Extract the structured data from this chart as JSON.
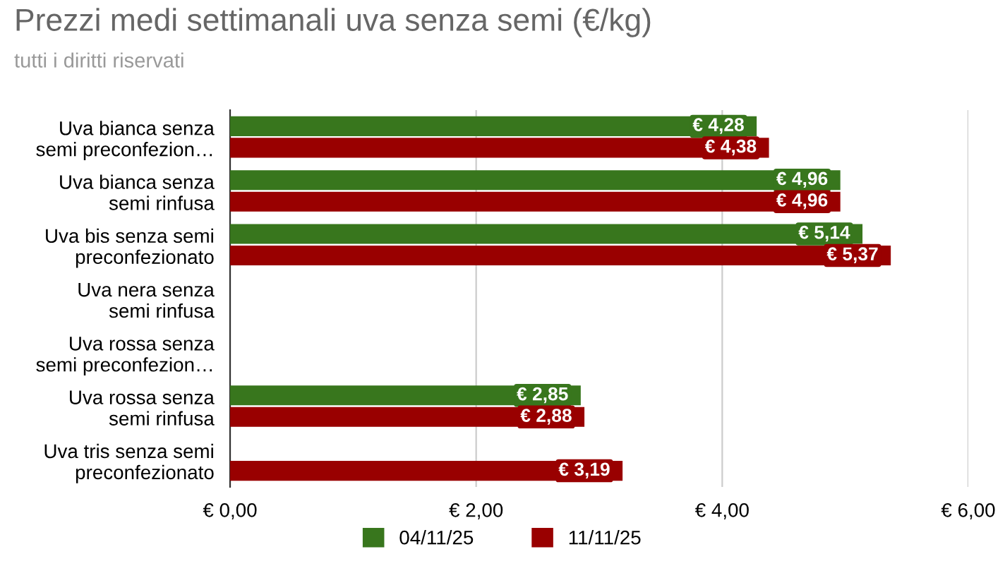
{
  "chart_data": {
    "type": "bar",
    "orientation": "horizontal",
    "title": "Prezzi medi settimanali uva senza semi (€/kg)",
    "annotations": [
      "tutti i diritti riservati"
    ],
    "categories": [
      "Uva bianca senza\nsemi preconfezion…",
      "Uva bianca senza\nsemi rinfusa",
      "Uva bis senza semi\npreconfezionato",
      "Uva nera senza\nsemi rinfusa",
      "Uva rossa senza\nsemi preconfezion…",
      "Uva rossa senza\nsemi rinfusa",
      "Uva tris senza semi\npreconfezionato"
    ],
    "series": [
      {
        "name": "04/11/25",
        "color": "#38761d",
        "values": [
          4.28,
          4.96,
          5.14,
          null,
          null,
          2.85,
          null
        ],
        "value_labels": [
          "€ 4,28",
          "€ 4,96",
          "€ 5,14",
          null,
          null,
          "€ 2,85",
          null
        ]
      },
      {
        "name": "11/11/25",
        "color": "#990000",
        "values": [
          4.38,
          4.96,
          5.37,
          null,
          null,
          2.88,
          3.19
        ],
        "value_labels": [
          "€ 4,38",
          "€ 4,96",
          "€ 5,37",
          null,
          null,
          "€ 2,88",
          "€ 3,19"
        ]
      }
    ],
    "xlim": [
      0,
      6
    ],
    "xticks": [
      {
        "value": 0,
        "label": "€ 0,00"
      },
      {
        "value": 2,
        "label": "€ 2,00"
      },
      {
        "value": 4,
        "label": "€ 4,00"
      },
      {
        "value": 6,
        "label": "€ 6,00"
      }
    ],
    "grid": "x",
    "legend": "bottom"
  }
}
